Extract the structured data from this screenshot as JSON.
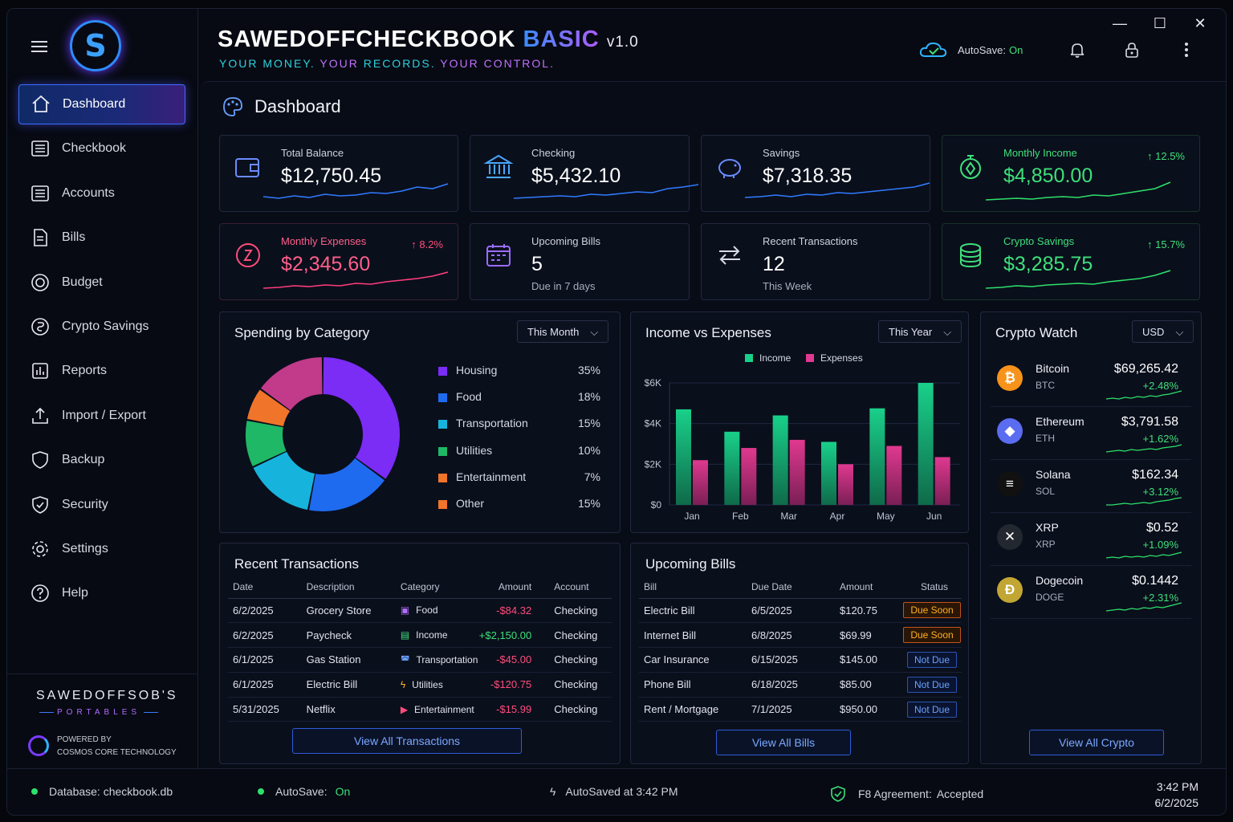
{
  "app": {
    "title_main": "SAWEDOFFCHECKBOOK",
    "title_edition": "BASIC",
    "title_version": "v1.0",
    "tagline_1": "YOUR MONEY.",
    "tagline_2": "YOUR",
    "tagline_3": "RECORDS.",
    "tagline_4": "YOUR",
    "tagline_5": "CONTROL.",
    "logo_letter": "S",
    "autosave_label": "AutoSave:",
    "autosave_value": "On"
  },
  "sidebar": {
    "items": [
      {
        "label": "Dashboard",
        "icon": "home-icon"
      },
      {
        "label": "Checkbook",
        "icon": "list-icon"
      },
      {
        "label": "Accounts",
        "icon": "list-icon"
      },
      {
        "label": "Bills",
        "icon": "document-icon"
      },
      {
        "label": "Budget",
        "icon": "budget-icon"
      },
      {
        "label": "Crypto Savings",
        "icon": "crypto-icon"
      },
      {
        "label": "Reports",
        "icon": "reports-icon"
      },
      {
        "label": "Import / Export",
        "icon": "upload-icon"
      },
      {
        "label": "Backup",
        "icon": "shield-icon"
      },
      {
        "label": "Security",
        "icon": "shield-check-icon"
      },
      {
        "label": "Settings",
        "icon": "gear-icon"
      },
      {
        "label": "Help",
        "icon": "help-icon"
      }
    ],
    "brand_title": "SAWEDOFFSOB'S",
    "brand_sub": "PORTABLES",
    "powered_1": "POWERED BY",
    "powered_2": "COSMOS CORE TECHNOLOGY"
  },
  "page": {
    "title": "Dashboard"
  },
  "stats": [
    {
      "label": "Total Balance",
      "value": "$12,750.45",
      "sub": "",
      "change": ""
    },
    {
      "label": "Checking",
      "value": "$5,432.10",
      "sub": "",
      "change": ""
    },
    {
      "label": "Savings",
      "value": "$7,318.35",
      "sub": "",
      "change": ""
    },
    {
      "label": "Monthly Income",
      "value": "$4,850.00",
      "sub": "",
      "change": "↑ 12.5%"
    },
    {
      "label": "Monthly Expenses",
      "value": "$2,345.60",
      "sub": "",
      "change": "↑ 8.2%"
    },
    {
      "label": "Upcoming Bills",
      "value": "5",
      "sub": "Due in 7 days",
      "change": ""
    },
    {
      "label": "Recent Transactions",
      "value": "12",
      "sub": "This Week",
      "change": ""
    },
    {
      "label": "Crypto Savings",
      "value": "$3,285.75",
      "sub": "",
      "change": "↑ 15.7%"
    }
  ],
  "spending": {
    "title": "Spending by Category",
    "filter": "This Month",
    "categories": [
      {
        "name": "Housing",
        "pct": "35%",
        "value": 35,
        "color": "#7b2cf5"
      },
      {
        "name": "Food",
        "pct": "18%",
        "value": 18,
        "color": "#1e6bf0"
      },
      {
        "name": "Transportation",
        "pct": "15%",
        "value": 15,
        "color": "#16b4dc"
      },
      {
        "name": "Utilities",
        "pct": "10%",
        "value": 10,
        "color": "#1fb866"
      },
      {
        "name": "Entertainment",
        "pct": "7%",
        "value": 7,
        "color": "#f0742a"
      },
      {
        "name": "Other",
        "pct": "15%",
        "value": 15,
        "color": "#c23a8a"
      }
    ],
    "legend_other_color": "#f0742a"
  },
  "income_chart": {
    "title": "Income vs Expenses",
    "filter": "This Year",
    "legend_income": "Income",
    "legend_expenses": "Expenses",
    "y_ticks": [
      "$6K",
      "$4K",
      "$2K",
      "$0"
    ]
  },
  "chart_data": {
    "type": "bar",
    "categories": [
      "Jan",
      "Feb",
      "Mar",
      "Apr",
      "May",
      "Jun"
    ],
    "series": [
      {
        "name": "Income",
        "values": [
          4700,
          3600,
          4400,
          3100,
          4750,
          6000
        ],
        "color": "#19d08a"
      },
      {
        "name": "Expenses",
        "values": [
          2200,
          2800,
          3200,
          2000,
          2900,
          2350
        ],
        "color": "#e0398f"
      }
    ],
    "ylim": [
      0,
      6000
    ]
  },
  "crypto": {
    "title": "Crypto Watch",
    "currency": "USD",
    "coins": [
      {
        "name": "Bitcoin",
        "symbol": "BTC",
        "price": "$69,265.42",
        "change": "+2.48%",
        "glyph": "₿",
        "color": "#f7931a"
      },
      {
        "name": "Ethereum",
        "symbol": "ETH",
        "price": "$3,791.58",
        "change": "+1.62%",
        "glyph": "◆",
        "color": "#5a6cf0"
      },
      {
        "name": "Solana",
        "symbol": "SOL",
        "price": "$162.34",
        "change": "+3.12%",
        "glyph": "≡",
        "color": "#111"
      },
      {
        "name": "XRP",
        "symbol": "XRP",
        "price": "$0.52",
        "change": "+1.09%",
        "glyph": "✕",
        "color": "#23272f"
      },
      {
        "name": "Dogecoin",
        "symbol": "DOGE",
        "price": "$0.1442",
        "change": "+2.31%",
        "glyph": "Đ",
        "color": "#c2a633"
      }
    ],
    "button": "View All Crypto"
  },
  "transactions": {
    "title": "Recent Transactions",
    "headers": [
      "Date",
      "Description",
      "Category",
      "Amount",
      "Account"
    ],
    "rows": [
      {
        "date": "6/2/2025",
        "desc": "Grocery Store",
        "cat": "Food",
        "amount": "-$84.32",
        "account": "Checking",
        "type": "neg"
      },
      {
        "date": "6/2/2025",
        "desc": "Paycheck",
        "cat": "Income",
        "amount": "+$2,150.00",
        "account": "Checking",
        "type": "pos"
      },
      {
        "date": "6/1/2025",
        "desc": "Gas Station",
        "cat": "Transportation",
        "amount": "-$45.00",
        "account": "Checking",
        "type": "neg"
      },
      {
        "date": "6/1/2025",
        "desc": "Electric Bill",
        "cat": "Utilities",
        "amount": "-$120.75",
        "account": "Checking",
        "type": "neg"
      },
      {
        "date": "5/31/2025",
        "desc": "Netflix",
        "cat": "Entertainment",
        "amount": "-$15.99",
        "account": "Checking",
        "type": "neg"
      }
    ],
    "button": "View All Transactions"
  },
  "bills": {
    "title": "Upcoming Bills",
    "headers": [
      "Bill",
      "Due Date",
      "Amount",
      "Status"
    ],
    "rows": [
      {
        "bill": "Electric Bill",
        "due": "6/5/2025",
        "amount": "$120.75",
        "status": "Due Soon"
      },
      {
        "bill": "Internet Bill",
        "due": "6/8/2025",
        "amount": "$69.99",
        "status": "Due Soon"
      },
      {
        "bill": "Car Insurance",
        "due": "6/15/2025",
        "amount": "$145.00",
        "status": "Not Due"
      },
      {
        "bill": "Phone Bill",
        "due": "6/18/2025",
        "amount": "$85.00",
        "status": "Not Due"
      },
      {
        "bill": "Rent / Mortgage",
        "due": "7/1/2025",
        "amount": "$950.00",
        "status": "Not Due"
      }
    ],
    "button": "View All Bills"
  },
  "statusbar": {
    "database": "Database: checkbook.db",
    "autosave_label": "AutoSave:",
    "autosave_value": "On",
    "autosaved": "AutoSaved at 3:42 PM",
    "agreement_label": "F8 Agreement:",
    "agreement_value": "Accepted",
    "time": "3:42 PM",
    "date": "6/2/2025"
  }
}
